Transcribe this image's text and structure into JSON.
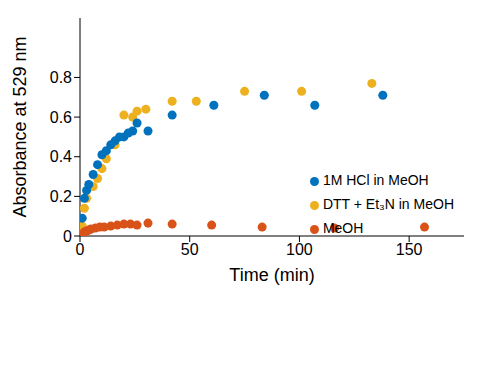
{
  "chart_data": {
    "type": "scatter",
    "x_label": "Time (min)",
    "y_label": "Absorbance at 529 nm",
    "xlim": [
      0,
      175
    ],
    "ylim": [
      0,
      1.1
    ],
    "xticks": [
      0,
      50,
      100,
      150
    ],
    "yticks": [
      0,
      0.2,
      0.4,
      0.6,
      0.8
    ],
    "legend": "right",
    "marker": "circle",
    "series": [
      {
        "name": "DTT + Et₃N in MeOH",
        "color": "#EDB120",
        "x": [
          1,
          2,
          3,
          6,
          8,
          10,
          12,
          16,
          20,
          24,
          26,
          30,
          42,
          53,
          75,
          101,
          133
        ],
        "values": [
          0.05,
          0.14,
          0.19,
          0.25,
          0.29,
          0.34,
          0.39,
          0.46,
          0.61,
          0.6,
          0.63,
          0.64,
          0.68,
          0.68,
          0.73,
          0.73,
          0.77
        ]
      },
      {
        "name": "1M HCl in MeOH",
        "color": "#0072BD",
        "x": [
          1,
          2,
          3,
          4,
          6,
          8,
          10,
          12,
          14,
          16,
          18,
          20,
          22,
          24,
          26,
          31,
          42,
          61,
          84,
          107,
          138
        ],
        "values": [
          0.09,
          0.19,
          0.23,
          0.26,
          0.31,
          0.36,
          0.41,
          0.43,
          0.46,
          0.48,
          0.5,
          0.5,
          0.52,
          0.53,
          0.57,
          0.53,
          0.61,
          0.66,
          0.71,
          0.66,
          0.71
        ]
      },
      {
        "name": "MeOH",
        "color": "#D95319",
        "x": [
          1,
          2,
          3,
          4,
          5,
          7,
          9,
          11,
          14,
          17,
          20,
          23,
          26,
          31,
          42,
          60,
          83,
          116,
          157
        ],
        "values": [
          0.01,
          0.02,
          0.025,
          0.03,
          0.035,
          0.04,
          0.045,
          0.045,
          0.05,
          0.055,
          0.06,
          0.06,
          0.055,
          0.065,
          0.06,
          0.055,
          0.045,
          0.04,
          0.045
        ]
      }
    ]
  }
}
